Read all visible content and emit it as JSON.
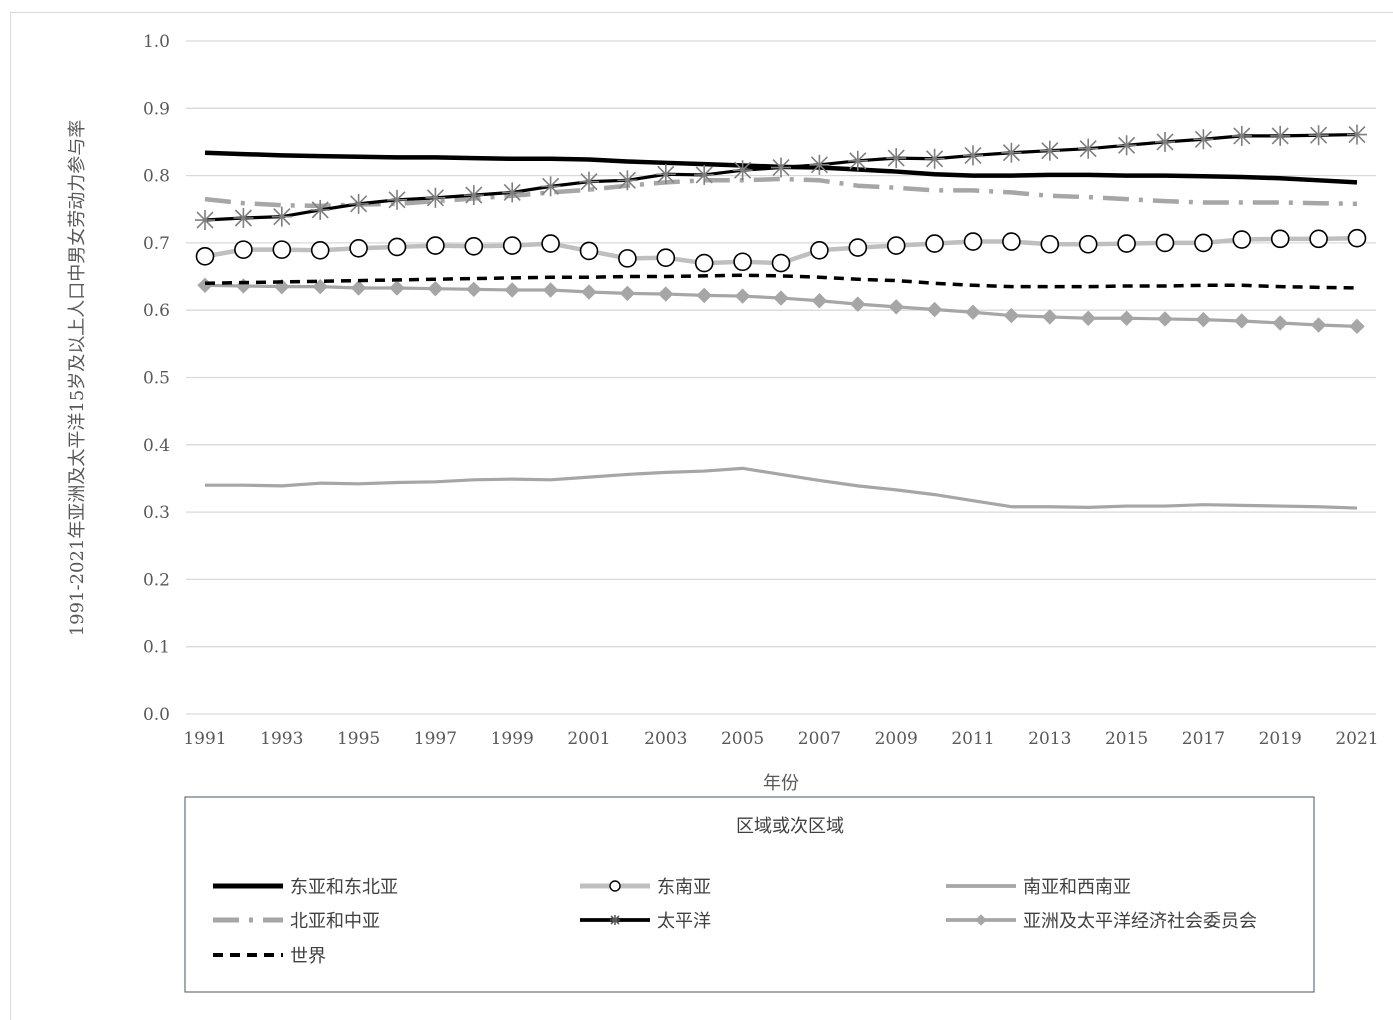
{
  "chart_data": {
    "type": "line",
    "title": "",
    "xlabel": "年份",
    "ylabel": "1991-2021年亚洲及太平洋15岁及以上人口中男女劳动力参与率",
    "legend_title": "区域或次区域",
    "legend_position": "bottom",
    "grid": true,
    "ylim": [
      0,
      1.0
    ],
    "yticks": [
      "0.0",
      "0.1",
      "0.2",
      "0.3",
      "0.4",
      "0.5",
      "0.6",
      "0.7",
      "0.8",
      "0.9",
      "1.0"
    ],
    "xticks": [
      "1991",
      "1993",
      "1995",
      "1997",
      "1999",
      "2001",
      "2003",
      "2005",
      "2007",
      "2009",
      "2011",
      "2013",
      "2015",
      "2017",
      "2019",
      "2021"
    ],
    "x": [
      1991,
      1992,
      1993,
      1994,
      1995,
      1996,
      1997,
      1998,
      1999,
      2000,
      2001,
      2002,
      2003,
      2004,
      2005,
      2006,
      2007,
      2008,
      2009,
      2010,
      2011,
      2012,
      2013,
      2014,
      2015,
      2016,
      2017,
      2018,
      2019,
      2020,
      2021
    ],
    "series": [
      {
        "name": "东亚和东北亚",
        "color": "#000000",
        "style": "solid-thick",
        "marker": "none",
        "values": [
          0.834,
          0.832,
          0.83,
          0.829,
          0.828,
          0.827,
          0.827,
          0.826,
          0.825,
          0.825,
          0.824,
          0.821,
          0.819,
          0.817,
          0.815,
          0.813,
          0.812,
          0.809,
          0.806,
          0.802,
          0.8,
          0.8,
          0.801,
          0.801,
          0.8,
          0.8,
          0.799,
          0.798,
          0.796,
          0.793,
          0.79
        ]
      },
      {
        "name": "东南亚",
        "color": "#bfbfbf",
        "style": "solid-thick",
        "marker": "open-circle",
        "values": [
          0.68,
          0.69,
          0.69,
          0.689,
          0.692,
          0.694,
          0.696,
          0.695,
          0.696,
          0.699,
          0.688,
          0.677,
          0.678,
          0.67,
          0.672,
          0.67,
          0.689,
          0.693,
          0.696,
          0.699,
          0.702,
          0.702,
          0.698,
          0.698,
          0.699,
          0.7,
          0.7,
          0.705,
          0.706,
          0.706,
          0.707
        ]
      },
      {
        "name": "南亚和西南亚",
        "color": "#a6a6a6",
        "style": "solid",
        "marker": "none",
        "values": [
          0.34,
          0.34,
          0.339,
          0.343,
          0.342,
          0.344,
          0.345,
          0.348,
          0.349,
          0.348,
          0.352,
          0.356,
          0.359,
          0.361,
          0.365,
          0.356,
          0.347,
          0.339,
          0.333,
          0.326,
          0.317,
          0.308,
          0.308,
          0.307,
          0.309,
          0.309,
          0.311,
          0.31,
          0.309,
          0.308,
          0.306
        ]
      },
      {
        "name": "北亚和中亚",
        "color": "#a6a6a6",
        "style": "dashdot",
        "marker": "none",
        "values": [
          0.765,
          0.759,
          0.756,
          0.755,
          0.757,
          0.758,
          0.762,
          0.766,
          0.77,
          0.775,
          0.779,
          0.785,
          0.79,
          0.793,
          0.793,
          0.795,
          0.793,
          0.785,
          0.782,
          0.778,
          0.778,
          0.775,
          0.77,
          0.768,
          0.765,
          0.762,
          0.76,
          0.76,
          0.76,
          0.759,
          0.758
        ]
      },
      {
        "name": "太平洋",
        "color": "#000000",
        "style": "solid",
        "marker": "asterisk",
        "values": [
          0.734,
          0.737,
          0.739,
          0.749,
          0.758,
          0.764,
          0.767,
          0.771,
          0.775,
          0.784,
          0.791,
          0.793,
          0.802,
          0.801,
          0.808,
          0.812,
          0.816,
          0.822,
          0.826,
          0.825,
          0.83,
          0.834,
          0.837,
          0.84,
          0.845,
          0.85,
          0.854,
          0.859,
          0.859,
          0.86,
          0.861
        ]
      },
      {
        "name": "亚洲及太平洋经济社会委员会",
        "color": "#a6a6a6",
        "style": "solid",
        "marker": "diamond",
        "values": [
          0.637,
          0.636,
          0.635,
          0.635,
          0.633,
          0.633,
          0.632,
          0.631,
          0.63,
          0.63,
          0.627,
          0.625,
          0.624,
          0.622,
          0.621,
          0.618,
          0.614,
          0.609,
          0.605,
          0.601,
          0.597,
          0.592,
          0.59,
          0.588,
          0.588,
          0.587,
          0.586,
          0.584,
          0.581,
          0.578,
          0.576
        ]
      },
      {
        "name": "世界",
        "color": "#000000",
        "style": "dashed",
        "marker": "none",
        "values": [
          0.64,
          0.641,
          0.642,
          0.643,
          0.644,
          0.645,
          0.646,
          0.647,
          0.648,
          0.649,
          0.649,
          0.65,
          0.65,
          0.651,
          0.652,
          0.651,
          0.649,
          0.646,
          0.644,
          0.64,
          0.637,
          0.635,
          0.635,
          0.635,
          0.636,
          0.636,
          0.637,
          0.637,
          0.635,
          0.634,
          0.633
        ]
      }
    ]
  }
}
